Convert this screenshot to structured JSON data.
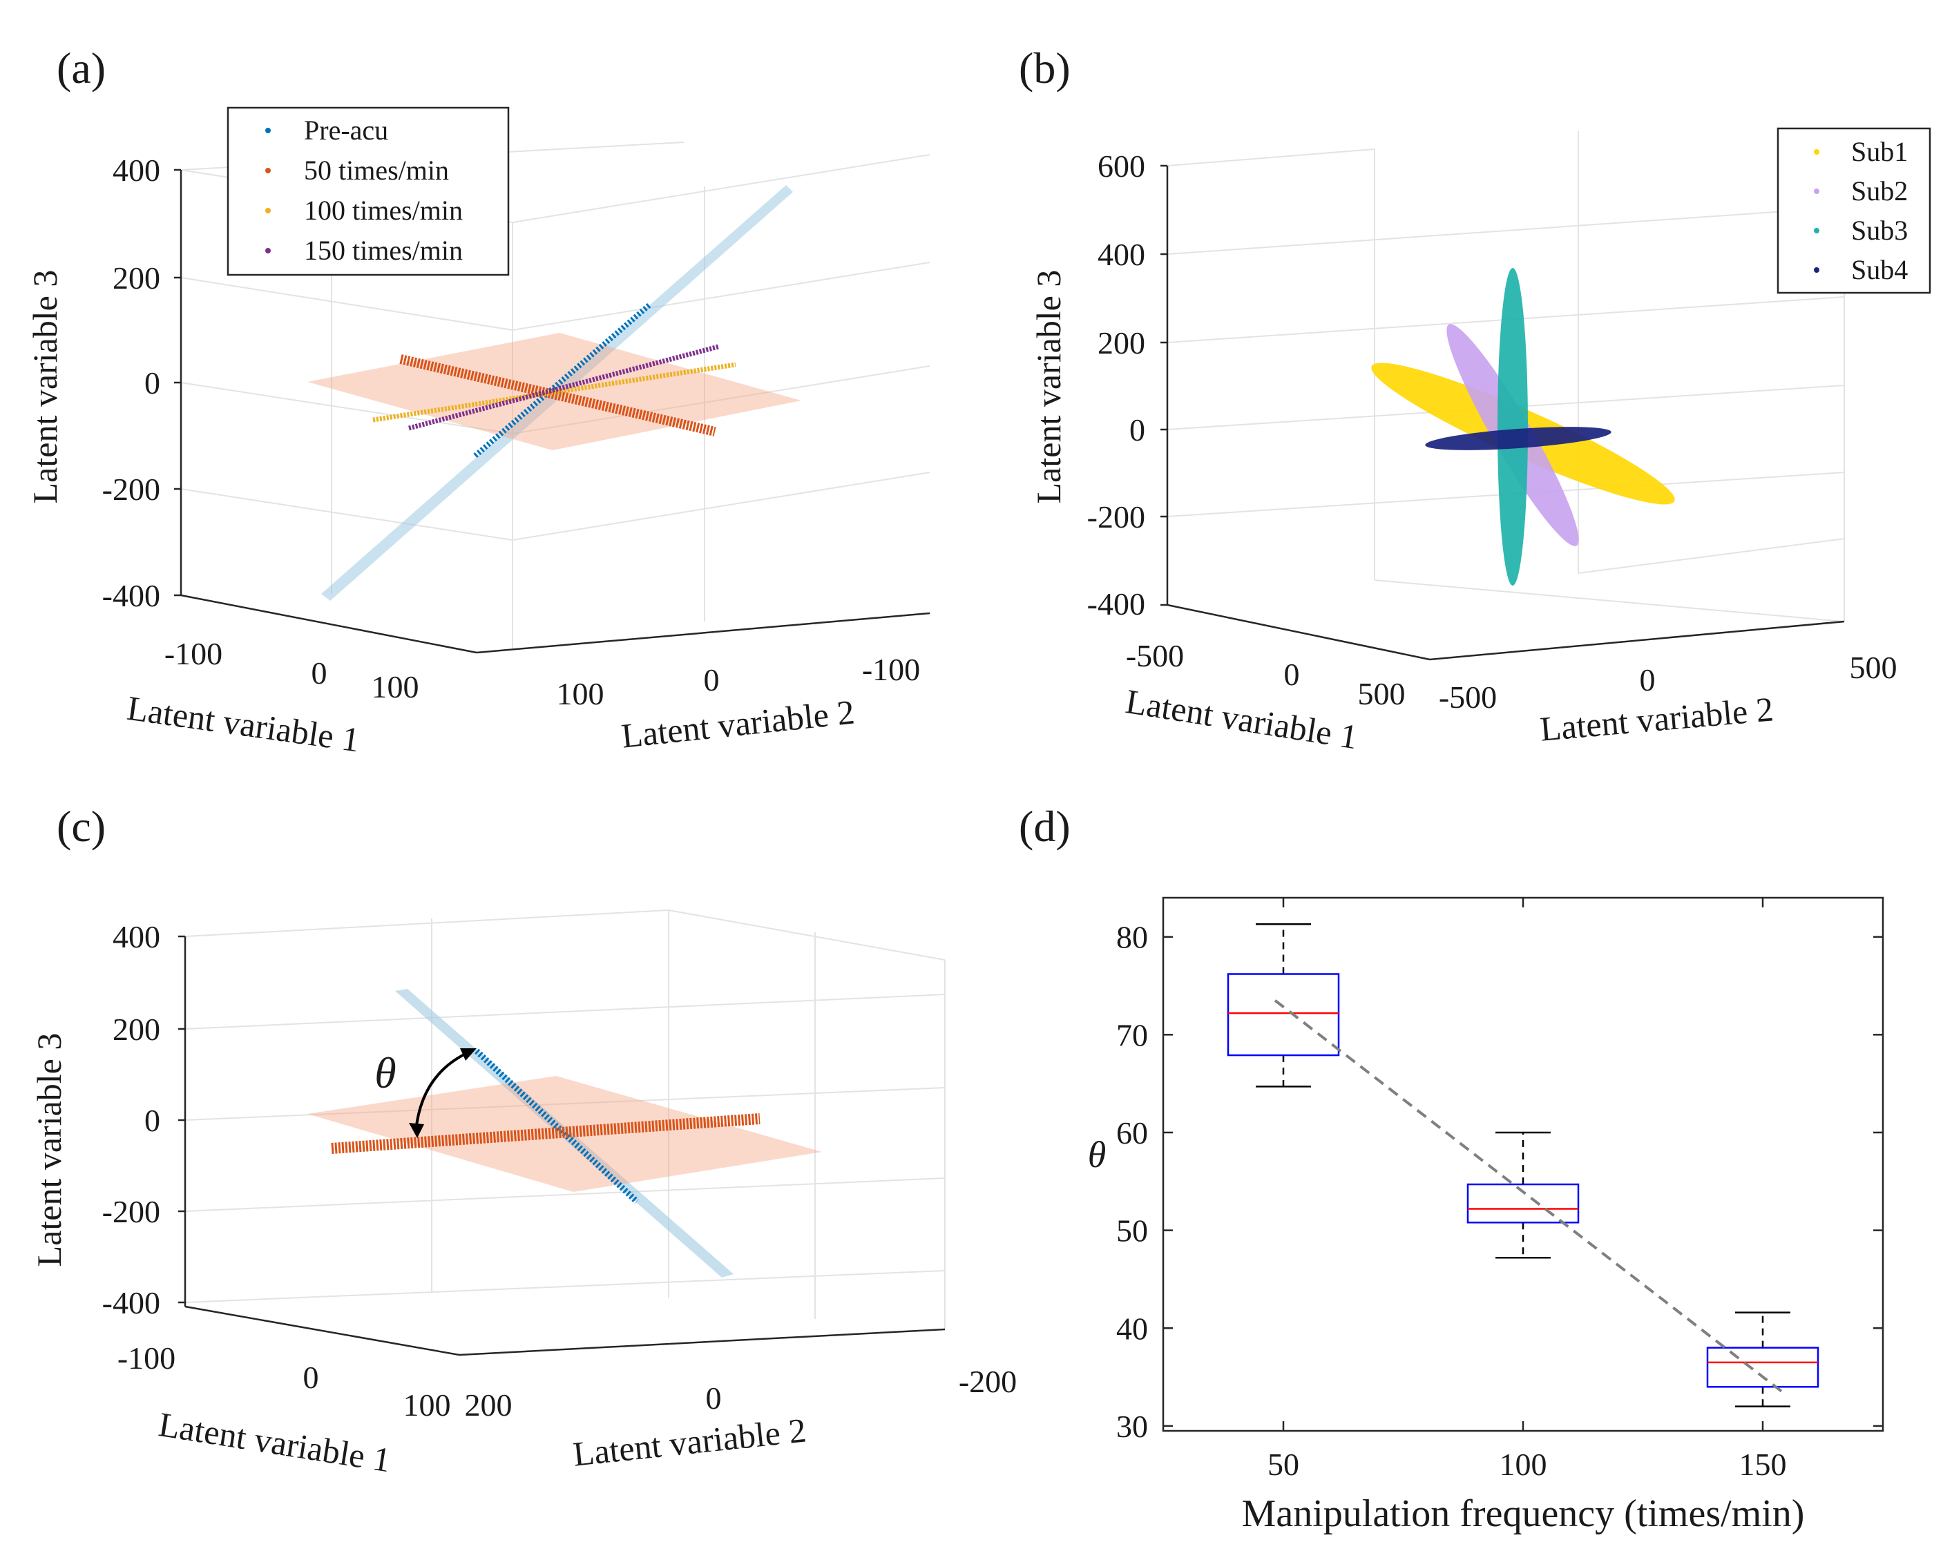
{
  "panels": {
    "a": {
      "label": "(a)",
      "zlabel": "Latent variable 3",
      "xlabel": "Latent variable 1",
      "ylabel": "Latent variable 2",
      "ztick_labels": [
        "400",
        "200",
        "0",
        "-200",
        "-400"
      ],
      "xtick_labels": [
        "-100",
        "0",
        "100"
      ],
      "ytick_labels": [
        "100",
        "0",
        "-100"
      ],
      "legend": [
        {
          "label": "Pre-acu",
          "color": "#0072BD"
        },
        {
          "label": "50 times/min",
          "color": "#D95319"
        },
        {
          "label": "100 times/min",
          "color": "#EDB120"
        },
        {
          "label": "150 times/min",
          "color": "#7E2F8E"
        }
      ]
    },
    "b": {
      "label": "(b)",
      "zlabel": "Latent variable 3",
      "xlabel": "Latent variable 1",
      "ylabel": "Latent variable 2",
      "ztick_labels": [
        "600",
        "400",
        "200",
        "0",
        "-200",
        "-400"
      ],
      "xtick_labels": [
        "-500",
        "0",
        "500"
      ],
      "ytick_labels": [
        "-500",
        "0",
        "500"
      ],
      "legend": [
        {
          "label": "Sub1",
          "color": "#FFD700"
        },
        {
          "label": "Sub2",
          "color": "#C8A2F0"
        },
        {
          "label": "Sub3",
          "color": "#20B2AA"
        },
        {
          "label": "Sub4",
          "color": "#1A237E"
        }
      ]
    },
    "c": {
      "label": "(c)",
      "zlabel": "Latent variable 3",
      "xlabel": "Latent variable 1",
      "ylabel": "Latent variable 2",
      "ztick_labels": [
        "400",
        "200",
        "0",
        "-200",
        "-400"
      ],
      "xtick_labels": [
        "-100",
        "0",
        "100"
      ],
      "ytick_labels": [
        "200",
        "0",
        "-200"
      ],
      "theta_symbol": "θ"
    },
    "d": {
      "label": "(d)"
    }
  },
  "chart_data": {
    "type": "box",
    "title": "",
    "xlabel": "Manipulation frequency (times/min)",
    "ylabel": "θ",
    "categories": [
      "50",
      "100",
      "150"
    ],
    "ylim": [
      29.5,
      84
    ],
    "yticks": [
      30,
      40,
      50,
      60,
      70,
      80
    ],
    "boxes": [
      {
        "category": "50",
        "whisker_low": 64.7,
        "q1": 67.9,
        "median": 72.2,
        "q3": 76.2,
        "whisker_high": 81.3
      },
      {
        "category": "100",
        "whisker_low": 47.2,
        "q1": 50.8,
        "median": 52.2,
        "q3": 54.7,
        "whisker_high": 60.0
      },
      {
        "category": "150",
        "whisker_low": 32.0,
        "q1": 34.0,
        "median": 36.5,
        "q3": 38.0,
        "whisker_high": 41.6
      }
    ],
    "trend_line": {
      "style": "dashed",
      "color": "#7f7f7f",
      "from": 73.5,
      "to": 33.5
    },
    "box_color": "#0000FF",
    "median_color": "#FF0000"
  }
}
